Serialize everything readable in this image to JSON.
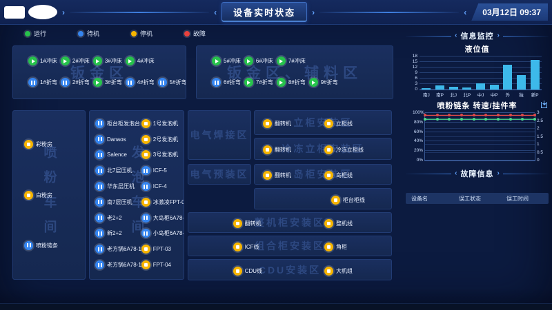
{
  "header": {
    "title": "设备实时状态",
    "datetime": "03月12日 09:37"
  },
  "status_colors": {
    "run": "#27c24c",
    "standby": "#3585f0",
    "stop": "#f7b500",
    "fault": "#e8413d"
  },
  "legend": [
    {
      "label": "运行",
      "state": "run"
    },
    {
      "label": "待机",
      "state": "standby"
    },
    {
      "label": "停机",
      "state": "stop"
    },
    {
      "label": "故障",
      "state": "fault"
    }
  ],
  "zones": [
    {
      "id": "sheetA",
      "watermark": "钣金区",
      "rows": [
        [
          {
            "label": "1#冲床",
            "state": "run"
          },
          {
            "label": "2#冲床",
            "state": "run"
          },
          {
            "label": "3#冲床",
            "state": "run"
          },
          {
            "label": "4#冲床",
            "state": "run"
          }
        ],
        [
          {
            "label": "1#折弯",
            "state": "standby"
          },
          {
            "label": "2#折弯",
            "state": "standby"
          },
          {
            "label": "3#折弯",
            "state": "run"
          },
          {
            "label": "4#折弯",
            "state": "standby"
          },
          {
            "label": "5#折弯",
            "state": "standby"
          }
        ]
      ]
    },
    {
      "id": "sheetB",
      "watermark": "钣金区、辅料区",
      "rows": [
        [
          {
            "label": "5#冲床",
            "state": "run"
          },
          {
            "label": "6#冲床",
            "state": "run"
          },
          {
            "label": "7#冲床",
            "state": "run"
          }
        ],
        [
          {
            "label": "6#折弯",
            "state": "standby"
          },
          {
            "label": "7#折弯",
            "state": "run"
          },
          {
            "label": "8#折弯",
            "state": "run"
          },
          {
            "label": "9#折弯",
            "state": "run"
          }
        ]
      ]
    },
    {
      "id": "powder",
      "watermark": "喷粉车间",
      "items": [
        {
          "label": "彩粉房",
          "state": "stop"
        },
        {
          "label": "白粉房",
          "state": "stop"
        },
        {
          "label": "喷粉链条",
          "state": "standby"
        }
      ]
    },
    {
      "id": "foam",
      "watermark": "发泡车间",
      "items": [
        {
          "label": "柜台柜发泡台",
          "state": "standby"
        },
        {
          "label": "Danaos",
          "state": "standby"
        },
        {
          "label": "Salence",
          "state": "standby"
        },
        {
          "label": "北7层压机",
          "state": "standby"
        },
        {
          "label": "华东层压机",
          "state": "standby"
        },
        {
          "label": "南7层压机",
          "state": "standby"
        },
        {
          "label": "老2+2",
          "state": "standby"
        },
        {
          "label": "新2+2",
          "state": "standby"
        },
        {
          "label": "老方锅6A78-12",
          "state": "standby"
        },
        {
          "label": "老方锅6A78-11",
          "state": "standby"
        },
        {
          "label": "1号发泡机",
          "state": "stop"
        },
        {
          "label": "2号发泡机",
          "state": "stop"
        },
        {
          "label": "3号发泡机",
          "state": "stop"
        },
        {
          "label": "ICF-5",
          "state": "standby"
        },
        {
          "label": "ICF-4",
          "state": "standby"
        },
        {
          "label": "冰激凌FPT-07",
          "state": "stop"
        },
        {
          "label": "大岛柜6A78-15",
          "state": "standby"
        },
        {
          "label": "小岛柜6A78-08",
          "state": "standby"
        },
        {
          "label": "FPT-03",
          "state": "stop"
        },
        {
          "label": "FPT-04",
          "state": "stop"
        }
      ]
    },
    {
      "id": "weld",
      "watermark": "电气焊接区",
      "items": []
    },
    {
      "id": "preassy",
      "watermark": "电气预装区",
      "items": []
    },
    {
      "id": "upright",
      "watermark": "立柜安装区",
      "items": [
        {
          "label": "翻转机",
          "state": "stop"
        },
        {
          "label": "立柜线",
          "state": "stop"
        }
      ]
    },
    {
      "id": "freezer",
      "watermark": "冷冻立柜安装区",
      "items": [
        {
          "label": "翻转机",
          "state": "stop"
        },
        {
          "label": "冷冻立柜线",
          "state": "stop"
        }
      ]
    },
    {
      "id": "island",
      "watermark": "岛柜安装区",
      "items": [
        {
          "label": "翻转机",
          "state": "stop"
        },
        {
          "label": "岛柜线",
          "state": "stop"
        }
      ]
    },
    {
      "id": "counter",
      "watermark": "",
      "items": [
        {
          "label": "柜台柜线",
          "state": "stop"
        }
      ]
    },
    {
      "id": "whole",
      "watermark": "整机柜安装区",
      "items": [
        {
          "label": "翻转机",
          "state": "stop"
        },
        {
          "label": "整机线",
          "state": "stop"
        }
      ]
    },
    {
      "id": "combo",
      "watermark": "组合柜安装区",
      "items": [
        {
          "label": "ICF线",
          "state": "stop"
        },
        {
          "label": "角柜",
          "state": "stop"
        }
      ]
    },
    {
      "id": "cdu",
      "watermark": "CDU安装区",
      "items": [
        {
          "label": "CDU线",
          "state": "stop"
        },
        {
          "label": "大机组",
          "state": "stop"
        }
      ]
    }
  ],
  "monitor": {
    "info_section_label": "信息监控",
    "fault_section_label": "故障信息",
    "fault_table": {
      "headers": [
        "设备名",
        "误工状态",
        "误工时间"
      ],
      "rows": []
    }
  },
  "chart_data": [
    {
      "type": "bar",
      "title": "液位值",
      "categories": [
        "南J",
        "南P",
        "北J",
        "北P",
        "中J",
        "中P",
        "外",
        "独",
        "新P"
      ],
      "values": [
        0.7,
        2.1,
        1.5,
        1.1,
        3.4,
        2.8,
        13.5,
        8,
        16
      ],
      "xlabel": "",
      "ylabel": "",
      "ylim": [
        0,
        18
      ],
      "yticks": [
        0,
        3,
        6,
        9,
        12,
        15,
        18
      ],
      "bar_color": "#3db9ea",
      "grid": true,
      "legend_position": "none"
    },
    {
      "type": "line",
      "title": "喷粉链条 转速/挂件率",
      "x_points": 10,
      "series": [
        {
          "name": "挂件率",
          "axis": "left",
          "color": "#e04a4a",
          "values": [
            95,
            95,
            95,
            95,
            95,
            95,
            95,
            95,
            95,
            95
          ]
        },
        {
          "name": "转速",
          "axis": "right",
          "color": "#4cd98a",
          "values": [
            2.6,
            2.6,
            2.6,
            2.6,
            2.6,
            2.6,
            2.6,
            2.6,
            2.6,
            2.6
          ]
        }
      ],
      "left_axis": {
        "ticks": [
          "0%",
          "20%",
          "40%",
          "60%",
          "80%",
          "100%"
        ],
        "max": 100
      },
      "right_axis": {
        "ticks": [
          "0",
          "0.5",
          "1",
          "1.5",
          "2",
          "2.5",
          "3"
        ],
        "max": 3
      },
      "grid": true,
      "legend_position": "none"
    }
  ]
}
